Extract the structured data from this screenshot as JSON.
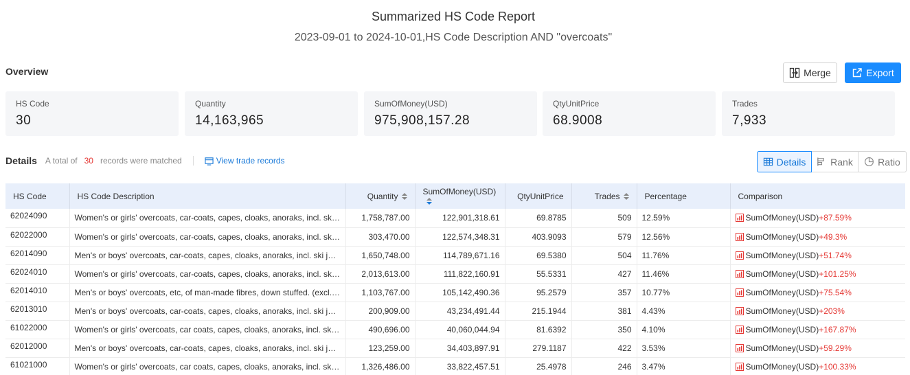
{
  "report": {
    "title": "Summarized HS Code Report",
    "subtitle": "2023-09-01 to 2024-10-01,HS Code Description AND \"overcoats\""
  },
  "overview": {
    "label": "Overview",
    "merge_label": "Merge",
    "export_label": "Export",
    "stats": [
      {
        "label": "HS Code",
        "value": "30"
      },
      {
        "label": "Quantity",
        "value": "14,163,965"
      },
      {
        "label": "SumOfMoney(USD)",
        "value": "975,908,157.28"
      },
      {
        "label": "QtyUnitPrice",
        "value": "68.9008"
      },
      {
        "label": "Trades",
        "value": "7,933"
      }
    ]
  },
  "details": {
    "label": "Details",
    "total_prefix": "A total of",
    "count": "30",
    "total_suffix": "records were matched",
    "view_link": "View trade records",
    "tabs": {
      "details": "Details",
      "rank": "Rank",
      "ratio": "Ratio"
    }
  },
  "table": {
    "headers": [
      "HS Code",
      "HS Code Description",
      "Quantity",
      "SumOfMoney(USD)",
      "QtyUnitPrice",
      "Trades",
      "Percentage",
      "Comparison"
    ],
    "comparison_metric": "SumOfMoney(USD)",
    "rows": [
      {
        "code": "62024090",
        "desc": "Women's or girls' overcoats, car-coats, capes, cloaks, anoraks, incl. ski jackets",
        "qty": "1,758,787.00",
        "money": "122,901,318.61",
        "unit": "69.8785",
        "trades": "509",
        "pct": "12.59%",
        "change": "+87.59%"
      },
      {
        "code": "62022000",
        "desc": "Women's or girls' overcoats, car-coats, capes, cloaks, anoraks, incl. ski jackets",
        "qty": "303,470.00",
        "money": "122,574,348.31",
        "unit": "403.9093",
        "trades": "579",
        "pct": "12.56%",
        "change": "+49.3%"
      },
      {
        "code": "62014090",
        "desc": "Men's or boys' overcoats, car-coats, capes, cloaks, anoraks, incl. ski jackets",
        "qty": "1,650,748.00",
        "money": "114,789,671.16",
        "unit": "69.5380",
        "trades": "504",
        "pct": "11.76%",
        "change": "+51.74%"
      },
      {
        "code": "62024010",
        "desc": "Women's or girls' overcoats, car-coats, capes, cloaks, anoraks, incl. ski jackets",
        "qty": "2,013,613.00",
        "money": "111,822,160.91",
        "unit": "55.5331",
        "trades": "427",
        "pct": "11.46%",
        "change": "+101.25%"
      },
      {
        "code": "62014010",
        "desc": "Men's or boys' overcoats, etc, of man-made fibres, down stuffed. (excl. cloaks)",
        "qty": "1,103,767.00",
        "money": "105,142,490.36",
        "unit": "95.2579",
        "trades": "357",
        "pct": "10.77%",
        "change": "+75.54%"
      },
      {
        "code": "62013010",
        "desc": "Men's or boys' overcoats, car-coats, capes, cloaks, anoraks, incl. ski jackets",
        "qty": "200,909.00",
        "money": "43,234,491.44",
        "unit": "215.1944",
        "trades": "381",
        "pct": "4.43%",
        "change": "+203%"
      },
      {
        "code": "61022000",
        "desc": "Women's or girls' overcoats, car coats, capes, cloaks, anoraks, incl. ski jackets",
        "qty": "490,696.00",
        "money": "40,060,044.94",
        "unit": "81.6392",
        "trades": "350",
        "pct": "4.10%",
        "change": "+167.87%"
      },
      {
        "code": "62012000",
        "desc": "Men's or boys' overcoats, car-coats, capes, cloaks, anoraks, incl. ski jackets",
        "qty": "123,259.00",
        "money": "34,403,897.91",
        "unit": "279.1187",
        "trades": "422",
        "pct": "3.53%",
        "change": "+59.29%"
      },
      {
        "code": "61021000",
        "desc": "Women's or girls' overcoats, car coats, capes, cloaks, anoraks, incl. ski jackets",
        "qty": "1,326,486.00",
        "money": "33,822,457.51",
        "unit": "25.4978",
        "trades": "246",
        "pct": "3.47%",
        "change": "+100.33%"
      }
    ]
  },
  "colors": {
    "accent": "#1a8cff",
    "increase": "#e53935",
    "header_bg": "#e8effb",
    "card_bg": "#f5f6f8"
  },
  "icons": {
    "merge": "merge-icon",
    "export": "export-icon",
    "view": "table-link-icon",
    "details": "table-icon",
    "rank": "rank-icon",
    "ratio": "pie-icon",
    "comparison": "bar-chart-icon"
  }
}
